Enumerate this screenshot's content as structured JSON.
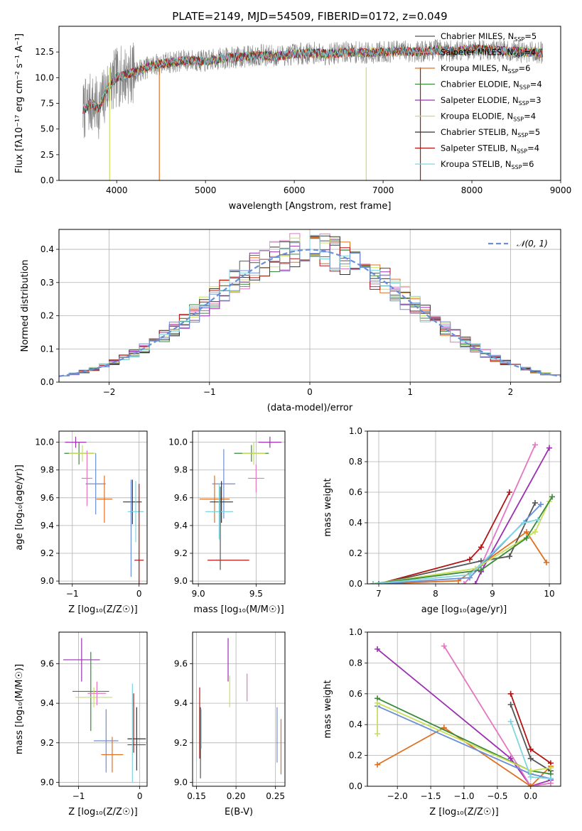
{
  "figure": {
    "title": "PLATE=2149, MJD=54509, FIBERID=0172, z=0.049"
  },
  "chart_data": [
    {
      "id": "spectrum",
      "type": "line",
      "xlabel": "wavelength [Angstrom, rest frame]",
      "ylabel": "Flux [f_λ10^-17 erg cm^-2 s^-1 A^-1]",
      "xlim": [
        3350,
        9000
      ],
      "ylim": [
        0,
        15
      ],
      "xticks": [
        4000,
        5000,
        6000,
        7000,
        8000,
        9000
      ],
      "yticks": [
        0.0,
        2.5,
        5.0,
        7.5,
        10.0,
        12.5
      ],
      "grid": false,
      "legend_position": "right",
      "series": [
        {
          "name": "Chabrier MILES, N_SSP=5",
          "color": "#555555"
        },
        {
          "name": "Salpeter MILES, N_SSP=4",
          "color": "#e377c2"
        },
        {
          "name": "Kroupa MILES, N_SSP=6",
          "color": "#e07020"
        },
        {
          "name": "Chabrier ELODIE, N_SSP=4",
          "color": "#3a8a3a"
        },
        {
          "name": "Salpeter ELODIE, N_SSP=3",
          "color": "#9b30b0"
        },
        {
          "name": "Kroupa ELODIE, N_SSP=4",
          "color": "#c8e05a"
        },
        {
          "name": "Chabrier STELIB, N_SSP=5",
          "color": "#333333"
        },
        {
          "name": "Salpeter STELIB, N_SSP=4",
          "color": "#b01515"
        },
        {
          "name": "Kroupa STELIB, N_SSP=6",
          "color": "#7fd6e0"
        }
      ],
      "data_shape": {
        "x": [
          3600,
          3700,
          3800,
          3900,
          4000,
          4100,
          4200,
          4400,
          4600,
          4800,
          5000,
          5200,
          5400,
          5600,
          5800,
          6000,
          6200,
          6400,
          6600,
          6800,
          7000,
          7200,
          7400,
          7600,
          7800,
          8000,
          8200,
          8400,
          8600,
          8800
        ],
        "y": [
          6.5,
          7.5,
          7.0,
          9.0,
          10.0,
          10.3,
          10.5,
          11.2,
          11.5,
          11.7,
          11.6,
          11.9,
          12.0,
          12.2,
          12.1,
          12.3,
          12.4,
          12.3,
          12.5,
          12.4,
          12.5,
          12.6,
          12.5,
          12.7,
          12.6,
          12.8,
          12.7,
          12.6,
          12.5,
          12.4
        ]
      }
    },
    {
      "id": "residuals",
      "type": "histogram",
      "xlabel": "(data-model)/error",
      "ylabel": "Normed distribution",
      "xlim": [
        -2.5,
        2.5
      ],
      "ylim": [
        0,
        0.46
      ],
      "xticks": [
        -2,
        -1,
        0,
        1,
        2
      ],
      "yticks": [
        0.0,
        0.1,
        0.2,
        0.3,
        0.4
      ],
      "grid": true,
      "legend": [
        "𝒩(0, 1)"
      ],
      "legend_position": "top-right",
      "bin_width": 0.1,
      "colors": [
        "#555555",
        "#e377c2",
        "#e07020",
        "#3a8a3a",
        "#9b30b0",
        "#c8e05a",
        "#333333",
        "#b01515",
        "#7fd6e0",
        "#6a8fd8"
      ],
      "curve_color": "#6a8fd8"
    },
    {
      "id": "age-vs-Z",
      "type": "errorbar",
      "xlabel": "Z [log10(Z/Z☉)]",
      "ylabel": "age [log10(age/yr)]",
      "xlim": [
        -1.2,
        0.12
      ],
      "ylim": [
        8.98,
        10.08
      ],
      "xticks": [
        -1,
        0
      ],
      "yticks": [
        9.0,
        9.2,
        9.4,
        9.6,
        9.8,
        10.0
      ],
      "grid": true,
      "points": [
        {
          "x": -0.95,
          "y": 10.0,
          "xerr": 0.16,
          "yerr": 0.04,
          "color": "#9b30b0"
        },
        {
          "x": -0.9,
          "y": 9.92,
          "xerr": 0.22,
          "yerr": 0.08,
          "color": "#3a8a3a"
        },
        {
          "x": -0.85,
          "y": 9.92,
          "xerr": 0.2,
          "yerr": 0.06,
          "color": "#c8e05a"
        },
        {
          "x": -0.78,
          "y": 9.74,
          "xerr": 0.08,
          "yerr": 0.2,
          "color": "#e377c2"
        },
        {
          "x": -0.65,
          "y": 9.7,
          "xerr": 0.15,
          "yerr": 0.22,
          "color": "#6a8fd8"
        },
        {
          "x": -0.52,
          "y": 9.59,
          "xerr": 0.12,
          "yerr": 0.17,
          "color": "#e07020"
        },
        {
          "x": -0.1,
          "y": 9.57,
          "xerr": 0.14,
          "yerr": 0.16,
          "color": "#333333"
        },
        {
          "x": -0.05,
          "y": 9.5,
          "xerr": 0.12,
          "yerr": 0.22,
          "color": "#7fd6e0"
        },
        {
          "x": 0.0,
          "y": 9.15,
          "xerr": 0.07,
          "yerr": 0.55,
          "color": "#b01515"
        },
        {
          "x": -0.12,
          "y": 9.38,
          "xerr": 0.0,
          "yerr": 0.35,
          "color": "#6a8fd8"
        }
      ]
    },
    {
      "id": "age-vs-mass",
      "type": "errorbar",
      "xlabel": "mass [log10(M/M☉)]",
      "ylabel": "",
      "xlim": [
        8.95,
        9.75
      ],
      "ylim": [
        8.98,
        10.08
      ],
      "xticks": [
        9.0,
        9.5
      ],
      "yticks": [
        9.0,
        9.2,
        9.4,
        9.6,
        9.8,
        10.0
      ],
      "grid": true,
      "points": [
        {
          "x": 9.62,
          "y": 10.0,
          "xerr": 0.1,
          "yerr": 0.04,
          "color": "#9b30b0"
        },
        {
          "x": 9.46,
          "y": 9.92,
          "xerr": 0.15,
          "yerr": 0.06,
          "color": "#3a8a3a"
        },
        {
          "x": 9.48,
          "y": 9.92,
          "xerr": 0.1,
          "yerr": 0.08,
          "color": "#c8e05a"
        },
        {
          "x": 9.5,
          "y": 9.74,
          "xerr": 0.07,
          "yerr": 0.1,
          "color": "#e377c2"
        },
        {
          "x": 9.22,
          "y": 9.7,
          "xerr": 0.1,
          "yerr": 0.25,
          "color": "#6a8fd8"
        },
        {
          "x": 9.14,
          "y": 9.59,
          "xerr": 0.13,
          "yerr": 0.17,
          "color": "#e07020"
        },
        {
          "x": 9.2,
          "y": 9.57,
          "xerr": 0.1,
          "yerr": 0.15,
          "color": "#333333"
        },
        {
          "x": 9.18,
          "y": 9.5,
          "xerr": 0.12,
          "yerr": 0.2,
          "color": "#7fd6e0"
        },
        {
          "x": 9.26,
          "y": 9.15,
          "xerr": 0.18,
          "yerr": 0.0,
          "color": "#b01515"
        },
        {
          "x": 9.19,
          "y": 9.38,
          "xerr": 0.0,
          "yerr": 0.3,
          "color": "#555555"
        }
      ]
    },
    {
      "id": "weight-vs-age",
      "type": "line",
      "xlabel": "age [log10(age/yr)]",
      "ylabel": "mass weight",
      "xlim": [
        6.8,
        10.2
      ],
      "ylim": [
        0,
        1.0
      ],
      "xticks": [
        7,
        8,
        9,
        10
      ],
      "yticks": [
        0.0,
        0.2,
        0.4,
        0.6,
        0.8,
        1.0
      ],
      "grid": true,
      "series": [
        {
          "color": "#b01515",
          "x": [
            7.0,
            8.6,
            8.8,
            9.3
          ],
          "y": [
            0.0,
            0.16,
            0.24,
            0.6
          ]
        },
        {
          "color": "#e377c2",
          "x": [
            8.5,
            8.8,
            9.75
          ],
          "y": [
            0.0,
            0.12,
            0.91
          ]
        },
        {
          "color": "#9b30b0",
          "x": [
            8.7,
            8.8,
            10.0
          ],
          "y": [
            0.0,
            0.08,
            0.89
          ]
        },
        {
          "color": "#e07020",
          "x": [
            7.0,
            8.4,
            9.6,
            9.95
          ],
          "y": [
            0.0,
            0.02,
            0.34,
            0.14
          ]
        },
        {
          "color": "#555555",
          "x": [
            7.0,
            8.8,
            9.3,
            9.75
          ],
          "y": [
            0.0,
            0.15,
            0.18,
            0.53
          ]
        },
        {
          "color": "#6a8fd8",
          "x": [
            7.0,
            8.6,
            9.85
          ],
          "y": [
            0.0,
            0.04,
            0.52
          ]
        },
        {
          "color": "#c8e05a",
          "x": [
            6.9,
            8.7,
            9.75,
            10.0
          ],
          "y": [
            0.0,
            0.1,
            0.34,
            0.54
          ]
        },
        {
          "color": "#3a8a3a",
          "x": [
            6.9,
            8.8,
            9.6,
            10.05
          ],
          "y": [
            0.0,
            0.09,
            0.3,
            0.57
          ]
        },
        {
          "color": "#7fd6e0",
          "x": [
            6.9,
            8.6,
            9.55,
            9.8
          ],
          "y": [
            0.0,
            0.06,
            0.4,
            0.42
          ]
        }
      ]
    },
    {
      "id": "mass-vs-Z",
      "type": "errorbar",
      "xlabel": "Z [log10(Z/Z☉)]",
      "ylabel": "mass [log10(M/M☉)]",
      "xlim": [
        -1.32,
        0.12
      ],
      "ylim": [
        8.98,
        9.76
      ],
      "xticks": [
        -1,
        0
      ],
      "yticks": [
        9.0,
        9.2,
        9.4,
        9.6
      ],
      "grid": true,
      "points": [
        {
          "x": -0.95,
          "y": 9.62,
          "xerr": 0.3,
          "yerr": 0.11,
          "color": "#9b30b0"
        },
        {
          "x": -0.8,
          "y": 9.46,
          "xerr": 0.3,
          "yerr": 0.2,
          "color": "#3a8a3a"
        },
        {
          "x": -0.75,
          "y": 9.43,
          "xerr": 0.3,
          "yerr": 0.05,
          "color": "#c8e05a"
        },
        {
          "x": -0.7,
          "y": 9.45,
          "xerr": 0.15,
          "yerr": 0.06,
          "color": "#e377c2"
        },
        {
          "x": -0.55,
          "y": 9.21,
          "xerr": 0.2,
          "yerr": 0.16,
          "color": "#6a8fd8"
        },
        {
          "x": -0.45,
          "y": 9.14,
          "xerr": 0.18,
          "yerr": 0.09,
          "color": "#e07020"
        },
        {
          "x": -0.05,
          "y": 9.22,
          "xerr": 0.15,
          "yerr": 0.16,
          "color": "#333333"
        },
        {
          "x": -0.05,
          "y": 9.19,
          "xerr": 0.15,
          "yerr": 0.0,
          "color": "#555555"
        },
        {
          "x": -0.12,
          "y": 9.25,
          "xerr": 0.0,
          "yerr": 0.25,
          "color": "#7fd6e0"
        },
        {
          "x": -0.1,
          "y": 9.3,
          "xerr": 0.0,
          "yerr": 0.15,
          "color": "#b01515"
        }
      ]
    },
    {
      "id": "mass-vs-ebv",
      "type": "errorbar",
      "xlabel": "E(B-V)",
      "ylabel": "",
      "xlim": [
        0.145,
        0.262
      ],
      "ylim": [
        8.98,
        9.76
      ],
      "xticks": [
        0.15,
        0.2,
        0.25
      ],
      "yticks": [
        9.0,
        9.2,
        9.4,
        9.6
      ],
      "grid": true,
      "points": [
        {
          "x": 0.154,
          "y": 9.3,
          "xerr": 0.0,
          "yerr": 0.18,
          "color": "#b01515"
        },
        {
          "x": 0.155,
          "y": 9.2,
          "xerr": 0.0,
          "yerr": 0.18,
          "color": "#555555"
        },
        {
          "x": 0.156,
          "y": 9.27,
          "xerr": 0.0,
          "yerr": 0.1,
          "color": "#7fd6e0"
        },
        {
          "x": 0.19,
          "y": 9.62,
          "xerr": 0.0,
          "yerr": 0.11,
          "color": "#9b30b0"
        },
        {
          "x": 0.192,
          "y": 9.46,
          "xerr": 0.0,
          "yerr": 0.08,
          "color": "#c8e05a"
        },
        {
          "x": 0.214,
          "y": 9.48,
          "xerr": 0.0,
          "yerr": 0.07,
          "color": "#e377c2"
        },
        {
          "x": 0.252,
          "y": 9.24,
          "xerr": 0.0,
          "yerr": 0.14,
          "color": "#6a8fd8"
        },
        {
          "x": 0.257,
          "y": 9.18,
          "xerr": 0.0,
          "yerr": 0.14,
          "color": "#e07020"
        }
      ]
    },
    {
      "id": "weight-vs-Z",
      "type": "line",
      "xlabel": "Z [log10(Z/Z☉)]",
      "ylabel": "mass weight",
      "xlim": [
        -2.45,
        0.45
      ],
      "ylim": [
        0,
        1.0
      ],
      "xticks": [
        -2.0,
        -1.5,
        -1.0,
        -0.5,
        0.0
      ],
      "yticks": [
        0.0,
        0.2,
        0.4,
        0.6,
        0.8,
        1.0
      ],
      "grid": true,
      "series": [
        {
          "color": "#9b30b0",
          "x": [
            -2.3,
            -0.3,
            0.0,
            0.3
          ],
          "y": [
            0.89,
            0.18,
            0.0,
            0.04
          ]
        },
        {
          "color": "#e377c2",
          "x": [
            -1.3,
            0.0,
            0.3
          ],
          "y": [
            0.91,
            0.0,
            0.02
          ]
        },
        {
          "color": "#e07020",
          "x": [
            -2.3,
            -1.3,
            0.0,
            0.3
          ],
          "y": [
            0.14,
            0.38,
            0.0,
            0.13
          ]
        },
        {
          "color": "#b01515",
          "x": [
            -0.3,
            0.0,
            0.3
          ],
          "y": [
            0.6,
            0.24,
            0.15
          ]
        },
        {
          "color": "#555555",
          "x": [
            -0.3,
            0.0,
            0.3
          ],
          "y": [
            0.53,
            0.18,
            0.1
          ]
        },
        {
          "color": "#6a8fd8",
          "x": [
            -2.3,
            0.0,
            0.3
          ],
          "y": [
            0.52,
            0.08,
            0.05
          ]
        },
        {
          "color": "#3a8a3a",
          "x": [
            -2.3,
            0.0,
            0.3
          ],
          "y": [
            0.57,
            0.1,
            0.08
          ]
        },
        {
          "color": "#c8e05a",
          "x": [
            -2.3,
            -2.3,
            0.0,
            0.3
          ],
          "y": [
            0.34,
            0.54,
            0.1,
            0.12
          ]
        },
        {
          "color": "#7fd6e0",
          "x": [
            -0.3,
            0.0,
            0.3
          ],
          "y": [
            0.42,
            0.06,
            0.05
          ]
        }
      ]
    }
  ]
}
